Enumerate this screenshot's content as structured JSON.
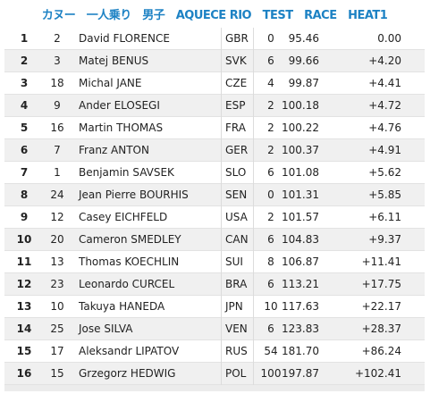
{
  "header": {
    "title": "カヌー　一人乗り　男子　AQUECE RIO　TEST　RACE　HEAT1"
  },
  "table": {
    "rows": [
      [
        1,
        2,
        "David FLORENCE",
        "GBR",
        0,
        "95.46",
        "0.00"
      ],
      [
        2,
        3,
        "Matej BENUS",
        "SVK",
        6,
        "99.66",
        "+4.20"
      ],
      [
        3,
        18,
        "Michal JANE",
        "CZE",
        4,
        "99.87",
        "+4.41"
      ],
      [
        4,
        9,
        "Ander ELOSEGI",
        "ESP",
        2,
        "100.18",
        "+4.72"
      ],
      [
        5,
        16,
        "Martin THOMAS",
        "FRA",
        2,
        "100.22",
        "+4.76"
      ],
      [
        6,
        7,
        "Franz ANTON",
        "GER",
        2,
        "100.37",
        "+4.91"
      ],
      [
        7,
        1,
        "Benjamin SAVSEK",
        "SLO",
        6,
        "101.08",
        "+5.62"
      ],
      [
        8,
        24,
        "Jean Pierre BOURHIS",
        "SEN",
        0,
        "101.31",
        "+5.85"
      ],
      [
        9,
        12,
        "Casey EICHFELD",
        "USA",
        2,
        "101.57",
        "+6.11"
      ],
      [
        10,
        20,
        "Cameron SMEDLEY",
        "CAN",
        6,
        "104.83",
        "+9.37"
      ],
      [
        11,
        13,
        "Thomas KOECHLIN",
        "SUI",
        8,
        "106.87",
        "+11.41"
      ],
      [
        12,
        23,
        "Leonardo CURCEL",
        "BRA",
        6,
        "113.21",
        "+17.75"
      ],
      [
        13,
        10,
        "Takuya HANEDA",
        "JPN",
        10,
        "117.63",
        "+22.17"
      ],
      [
        14,
        25,
        "Jose SILVA",
        "VEN",
        6,
        "123.83",
        "+28.37"
      ],
      [
        15,
        17,
        "Aleksandr LIPATOV",
        "RUS",
        54,
        "181.70",
        "+86.24"
      ],
      [
        16,
        15,
        "Grzegorz HEDWIG",
        "POL",
        100,
        "197.87",
        "+102.41"
      ]
    ]
  }
}
